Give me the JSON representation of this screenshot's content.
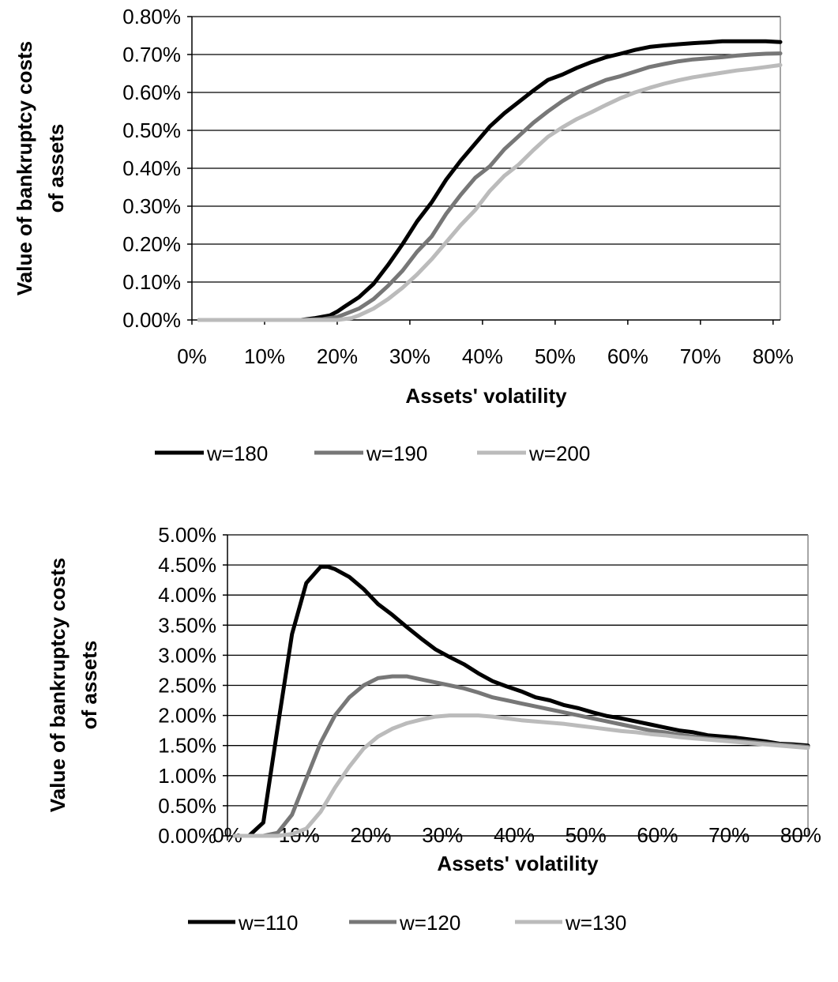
{
  "chart_data": [
    {
      "type": "line",
      "xlabel": "Assets' volatility",
      "ylabel_lines": [
        "Value of bankruptcy costs",
        "of assets"
      ],
      "xlim": [
        0,
        81
      ],
      "ylim": [
        0,
        0.8
      ],
      "xticks": [
        0,
        10,
        20,
        30,
        40,
        50,
        60,
        70,
        80
      ],
      "xtick_labels": [
        "0%",
        "10%",
        "20%",
        "30%",
        "40%",
        "50%",
        "60%",
        "70%",
        "80%"
      ],
      "yticks": [
        0,
        0.1,
        0.2,
        0.3,
        0.4,
        0.5,
        0.6,
        0.7,
        0.8
      ],
      "ytick_labels": [
        "0.00%",
        "0.10%",
        "0.20%",
        "0.30%",
        "0.40%",
        "0.50%",
        "0.60%",
        "0.70%",
        "0.80%"
      ],
      "grid": "horizontal",
      "legend_position": "bottom",
      "series": [
        {
          "name": "w=180",
          "color": "#000000",
          "x": [
            1,
            5,
            10,
            15,
            17,
            19,
            20,
            21,
            23,
            25,
            27,
            29,
            31,
            33,
            35,
            37,
            39,
            41,
            43,
            45,
            47,
            49,
            51,
            53,
            55,
            57,
            59,
            61,
            63,
            65,
            67,
            69,
            71,
            73,
            75,
            77,
            79,
            81
          ],
          "y": [
            0,
            0,
            0,
            0,
            0.005,
            0.012,
            0.022,
            0.035,
            0.06,
            0.095,
            0.145,
            0.2,
            0.26,
            0.31,
            0.37,
            0.42,
            0.465,
            0.51,
            0.545,
            0.575,
            0.605,
            0.633,
            0.647,
            0.665,
            0.68,
            0.693,
            0.702,
            0.712,
            0.72,
            0.724,
            0.727,
            0.73,
            0.732,
            0.735,
            0.735,
            0.735,
            0.735,
            0.733
          ]
        },
        {
          "name": "w=190",
          "color": "#777777",
          "x": [
            1,
            5,
            10,
            15,
            18,
            20,
            21,
            23,
            25,
            27,
            29,
            31,
            33,
            35,
            37,
            39,
            41,
            43,
            45,
            47,
            49,
            51,
            53,
            55,
            57,
            59,
            61,
            63,
            65,
            67,
            69,
            71,
            73,
            75,
            77,
            79,
            81
          ],
          "y": [
            0,
            0,
            0,
            0,
            0.002,
            0.008,
            0.015,
            0.03,
            0.055,
            0.09,
            0.13,
            0.18,
            0.22,
            0.28,
            0.33,
            0.375,
            0.405,
            0.45,
            0.485,
            0.52,
            0.55,
            0.577,
            0.6,
            0.617,
            0.633,
            0.643,
            0.655,
            0.667,
            0.675,
            0.682,
            0.687,
            0.69,
            0.693,
            0.697,
            0.7,
            0.702,
            0.703
          ]
        },
        {
          "name": "w=200",
          "color": "#bbbbbb",
          "x": [
            1,
            5,
            10,
            15,
            20,
            22,
            23,
            25,
            27,
            29,
            31,
            33,
            35,
            37,
            39,
            41,
            43,
            45,
            47,
            49,
            51,
            53,
            55,
            57,
            59,
            61,
            63,
            65,
            67,
            69,
            71,
            73,
            75,
            77,
            79,
            81
          ],
          "y": [
            0,
            0,
            0,
            0,
            0,
            0.005,
            0.012,
            0.03,
            0.055,
            0.085,
            0.12,
            0.16,
            0.205,
            0.25,
            0.29,
            0.34,
            0.38,
            0.41,
            0.448,
            0.483,
            0.508,
            0.53,
            0.548,
            0.567,
            0.585,
            0.6,
            0.612,
            0.623,
            0.632,
            0.64,
            0.646,
            0.652,
            0.658,
            0.662,
            0.667,
            0.672
          ]
        }
      ]
    },
    {
      "type": "line",
      "xlabel": "Assets' volatility",
      "ylabel_lines": [
        "Value of bankruptcy costs",
        "of assets"
      ],
      "xlim": [
        0,
        81
      ],
      "ylim": [
        0,
        5
      ],
      "xticks": [
        0,
        10,
        20,
        30,
        40,
        50,
        60,
        70,
        80
      ],
      "xtick_labels": [
        "0%",
        "10%",
        "20%",
        "30%",
        "40%",
        "50%",
        "60%",
        "70%",
        "80%"
      ],
      "yticks": [
        0,
        0.5,
        1,
        1.5,
        2,
        2.5,
        3,
        3.5,
        4,
        4.5,
        5
      ],
      "ytick_labels": [
        "0.00%",
        "0.50%",
        "1.00%",
        "1.50%",
        "2.00%",
        "2.50%",
        "3.00%",
        "3.50%",
        "4.00%",
        "4.50%",
        "5.00%"
      ],
      "grid": "horizontal",
      "legend_position": "bottom",
      "series": [
        {
          "name": "w=110",
          "color": "#000000",
          "x": [
            1,
            3,
            5,
            7,
            9,
            11,
            13,
            14,
            15,
            17,
            19,
            21,
            23,
            25,
            27,
            29,
            31,
            33,
            35,
            37,
            39,
            41,
            43,
            45,
            47,
            49,
            51,
            53,
            55,
            57,
            59,
            61,
            63,
            65,
            67,
            69,
            71,
            73,
            75,
            77,
            79,
            81
          ],
          "y": [
            0,
            0,
            0.22,
            1.8,
            3.35,
            4.2,
            4.47,
            4.47,
            4.43,
            4.3,
            4.1,
            3.85,
            3.67,
            3.47,
            3.28,
            3.1,
            2.97,
            2.85,
            2.7,
            2.57,
            2.48,
            2.4,
            2.3,
            2.25,
            2.17,
            2.12,
            2.05,
            1.99,
            1.95,
            1.9,
            1.85,
            1.8,
            1.75,
            1.72,
            1.67,
            1.65,
            1.63,
            1.6,
            1.57,
            1.53,
            1.52,
            1.5
          ]
        },
        {
          "name": "w=120",
          "color": "#777777",
          "x": [
            1,
            5,
            7,
            9,
            11,
            13,
            15,
            17,
            19,
            21,
            23,
            25,
            27,
            29,
            31,
            33,
            35,
            37,
            39,
            41,
            43,
            45,
            47,
            49,
            51,
            53,
            55,
            57,
            59,
            61,
            63,
            65,
            67,
            69,
            71,
            73,
            75,
            77,
            79,
            81
          ],
          "y": [
            0,
            0,
            0.05,
            0.35,
            0.95,
            1.55,
            2.0,
            2.3,
            2.5,
            2.62,
            2.65,
            2.65,
            2.6,
            2.55,
            2.5,
            2.45,
            2.38,
            2.3,
            2.25,
            2.2,
            2.15,
            2.1,
            2.05,
            2.0,
            1.95,
            1.9,
            1.85,
            1.8,
            1.75,
            1.72,
            1.68,
            1.65,
            1.62,
            1.6,
            1.58,
            1.56,
            1.54,
            1.52,
            1.5,
            1.48
          ]
        },
        {
          "name": "w=130",
          "color": "#bbbbbb",
          "x": [
            1,
            7,
            9,
            11,
            13,
            15,
            17,
            19,
            21,
            23,
            25,
            27,
            29,
            31,
            33,
            35,
            37,
            39,
            41,
            43,
            45,
            47,
            49,
            51,
            53,
            55,
            57,
            59,
            61,
            63,
            65,
            67,
            69,
            71,
            73,
            75,
            77,
            79,
            81
          ],
          "y": [
            0,
            0,
            0.03,
            0.12,
            0.4,
            0.8,
            1.15,
            1.45,
            1.65,
            1.78,
            1.87,
            1.93,
            1.98,
            2.0,
            2.0,
            2.0,
            1.98,
            1.95,
            1.92,
            1.9,
            1.88,
            1.86,
            1.83,
            1.8,
            1.77,
            1.74,
            1.72,
            1.69,
            1.67,
            1.64,
            1.62,
            1.6,
            1.58,
            1.56,
            1.54,
            1.52,
            1.5,
            1.48,
            1.46
          ]
        }
      ]
    }
  ]
}
